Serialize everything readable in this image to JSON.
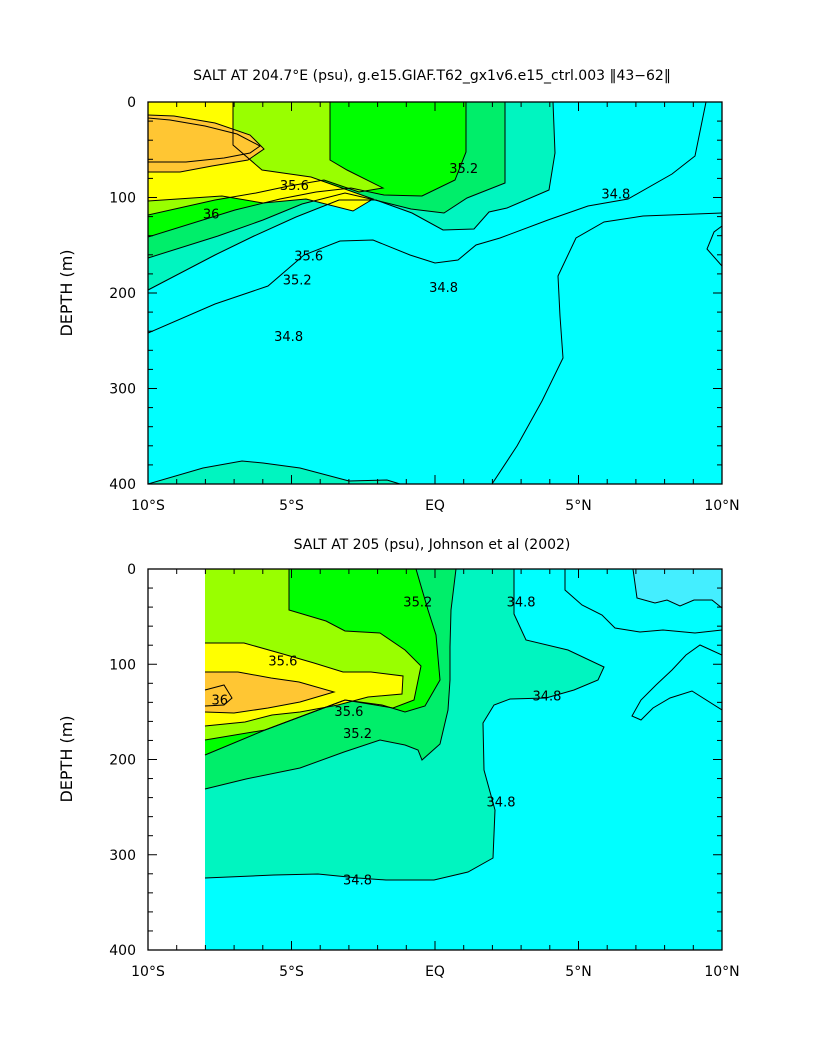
{
  "chart_data": [
    {
      "type": "contour",
      "title": "SALT AT 204.7°E (psu), g.e15.GIAF.T62_gx1v6.e15_ctrl.003 ‖43−62‖",
      "xlabel": "",
      "ylabel": "DEPTH (m)",
      "xlim": [
        -10,
        10
      ],
      "ylim": [
        400,
        0
      ],
      "x_ticks": [
        "10°S",
        "5°S",
        "EQ",
        "5°N",
        "10°N"
      ],
      "y_ticks": [
        "0",
        "100",
        "200",
        "300",
        "400"
      ],
      "contour_levels": [
        34.6,
        34.8,
        35.0,
        35.2,
        35.4,
        35.6,
        35.8,
        36.0,
        36.2
      ],
      "fill_colors": {
        "34.6-34.8": "#00ffff",
        "34.8-35.0": "#00f5c0",
        "35.0-35.2": "#00ee6a",
        "35.2-35.4": "#00ff00",
        "35.4-35.6": "#99ff00",
        "35.6-36.0": "#ffff00",
        "36.0-36.2": "#ffc633"
      },
      "contour_labels": [
        {
          "text": "35.6",
          "lat": -4.9,
          "depth": 88
        },
        {
          "text": "36",
          "lat": -7.8,
          "depth": 118
        },
        {
          "text": "35.6",
          "lat": -4.4,
          "depth": 162
        },
        {
          "text": "35.2",
          "lat": -4.8,
          "depth": 187
        },
        {
          "text": "35.2",
          "lat": 1.0,
          "depth": 70
        },
        {
          "text": "34.8",
          "lat": 6.3,
          "depth": 97
        },
        {
          "text": "34.8",
          "lat": 0.3,
          "depth": 195
        },
        {
          "text": "34.8",
          "lat": -5.1,
          "depth": 246
        }
      ]
    },
    {
      "type": "contour",
      "title": "SALT AT 205 (psu), Johnson et al (2002)",
      "xlabel": "",
      "ylabel": "DEPTH (m)",
      "xlim": [
        -10,
        10
      ],
      "ylim": [
        400,
        0
      ],
      "data_lat_range": [
        -8,
        10
      ],
      "x_ticks": [
        "10°S",
        "5°S",
        "EQ",
        "5°N",
        "10°N"
      ],
      "y_ticks": [
        "0",
        "100",
        "200",
        "300",
        "400"
      ],
      "contour_levels": [
        34.6,
        34.8,
        35.0,
        35.2,
        35.4,
        35.6,
        35.8,
        36.0,
        36.2
      ],
      "fill_colors": {
        "34.4-34.6": "#44eeff",
        "34.6-34.8": "#00ffff",
        "34.8-35.0": "#00f5c0",
        "35.0-35.2": "#00ee6a",
        "35.2-35.4": "#00ff00",
        "35.4-35.6": "#99ff00",
        "35.6-36.0": "#ffff00",
        "36.0-36.2": "#ffc633"
      },
      "contour_labels": [
        {
          "text": "35.6",
          "lat": -5.3,
          "depth": 97
        },
        {
          "text": "36",
          "lat": -7.5,
          "depth": 138
        },
        {
          "text": "35.6",
          "lat": -3.0,
          "depth": 150
        },
        {
          "text": "35.2",
          "lat": -2.7,
          "depth": 173
        },
        {
          "text": "35.2",
          "lat": -0.6,
          "depth": 35
        },
        {
          "text": "34.8",
          "lat": 3.0,
          "depth": 35
        },
        {
          "text": "34.8",
          "lat": 3.9,
          "depth": 134
        },
        {
          "text": "34.8",
          "lat": 2.3,
          "depth": 245
        },
        {
          "text": "34.8",
          "lat": -2.7,
          "depth": 327
        }
      ]
    }
  ]
}
